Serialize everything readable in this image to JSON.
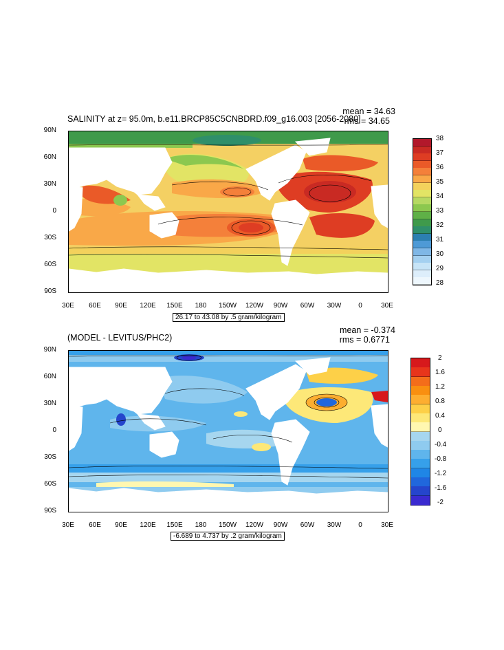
{
  "top_panel": {
    "title": "SALINITY at z=  95.0m, b.e11.BRCP85C5CNBDRD.f09_g16.003 [2056-2080]",
    "mean_text": "mean = 34.63",
    "rms_text": "rms = 34.65",
    "contour_info": "26.17 to 43.08 by .5 gram/kilogram",
    "colorbar_labels": [
      "38",
      "37",
      "36",
      "35",
      "34",
      "33",
      "32",
      "31",
      "30",
      "29",
      "28"
    ],
    "colorbar_colors": [
      "#b2182b",
      "#c92a23",
      "#de3d23",
      "#ea5a28",
      "#f4803a",
      "#f9a848",
      "#f3d15c",
      "#e2e465",
      "#b6d963",
      "#8cc84f",
      "#5fb047",
      "#3f9a4b",
      "#2f8f6a",
      "#2c7fb0",
      "#4e9ad6",
      "#7fb7e6",
      "#a4d0f0",
      "#c7e4f7",
      "#ddeefb",
      "#eef7fd"
    ]
  },
  "bottom_panel": {
    "title": "(MODEL - LEVITUS/PHC2)",
    "mean_text": "mean = -0.374",
    "rms_text": "rms = 0.6771",
    "contour_info": "-6.689 to 4.737 by .2 gram/kilogram",
    "colorbar_labels": [
      "2",
      "1.6",
      "1.2",
      "0.8",
      "0.4",
      "0",
      "-0.4",
      "-0.8",
      "-1.2",
      "-1.6",
      "-2"
    ],
    "colorbar_colors": [
      "#d7191c",
      "#e8351b",
      "#f46d1a",
      "#f98f10",
      "#fdae30",
      "#fdd048",
      "#fde878",
      "#fff7b0",
      "#a6d6ef",
      "#8fcbef",
      "#5fb5ec",
      "#36a0ea",
      "#1f86e6",
      "#2067dc",
      "#2545cc",
      "#3a2ad0"
    ]
  },
  "axes": {
    "lat_labels": [
      "90N",
      "60N",
      "30N",
      "0",
      "30S",
      "60S",
      "90S"
    ],
    "lon_labels": [
      "30E",
      "60E",
      "90E",
      "120E",
      "150E",
      "180",
      "150W",
      "120W",
      "90W",
      "60W",
      "30W",
      "0",
      "30E"
    ]
  },
  "map_colors": {
    "land": "#ffffff",
    "top_background": "#f4d063",
    "bottom_background": "#5fb5ec"
  }
}
